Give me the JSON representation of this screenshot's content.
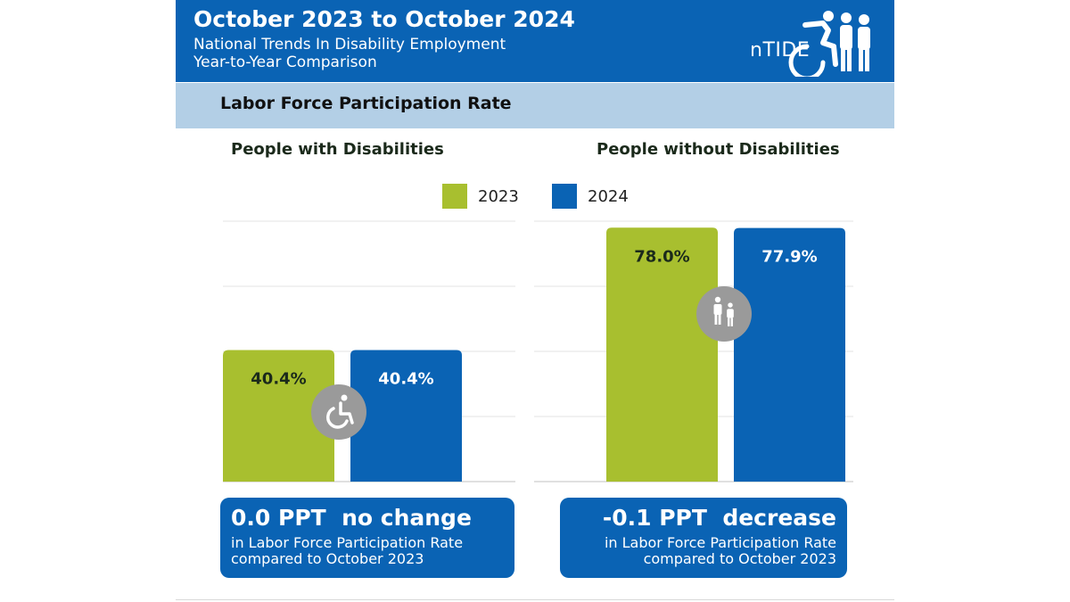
{
  "header": {
    "title": "October 2023 to October 2024",
    "subtitle_line1": "National Trends In Disability Employment",
    "subtitle_line2": "Year-to-Year Comparison",
    "logo_text": "nTIDE",
    "logo_icon": "person-wheelchair-and-people-icon",
    "bg_color": "#0a63b4"
  },
  "band": {
    "title": "Labor Force Participation Rate",
    "bg_color": "#b3cfe6"
  },
  "groups": {
    "with_title": "People with Disabilities",
    "without_title": "People without Disabilities"
  },
  "legend": [
    {
      "label": "2023",
      "color": "#a8bf2f"
    },
    {
      "label": "2024",
      "color": "#0a63b4"
    }
  ],
  "chart_data": {
    "type": "bar",
    "title": "Labor Force Participation Rate",
    "categories": [
      "People with Disabilities",
      "People without Disabilities"
    ],
    "series": [
      {
        "name": "2023",
        "values": [
          40.4,
          78.0
        ],
        "labels": [
          "40.4%",
          "78.0%"
        ],
        "color": "#a8bf2f"
      },
      {
        "name": "2024",
        "values": [
          40.4,
          77.9
        ],
        "labels": [
          "40.4%",
          "77.9%"
        ],
        "color": "#0a63b4"
      }
    ],
    "ylim": [
      0,
      80
    ],
    "grid": true,
    "legend_position": "top-center",
    "icons": [
      "wheelchair-icon",
      "people-icon"
    ]
  },
  "callouts": [
    {
      "main": "0.0 PPT  no change",
      "line1": "in Labor Force Participation Rate",
      "line2": "compared to October 2023"
    },
    {
      "main": "-0.1 PPT  decrease",
      "line1": "in Labor Force Participation Rate",
      "line2": "compared to October 2023"
    }
  ]
}
